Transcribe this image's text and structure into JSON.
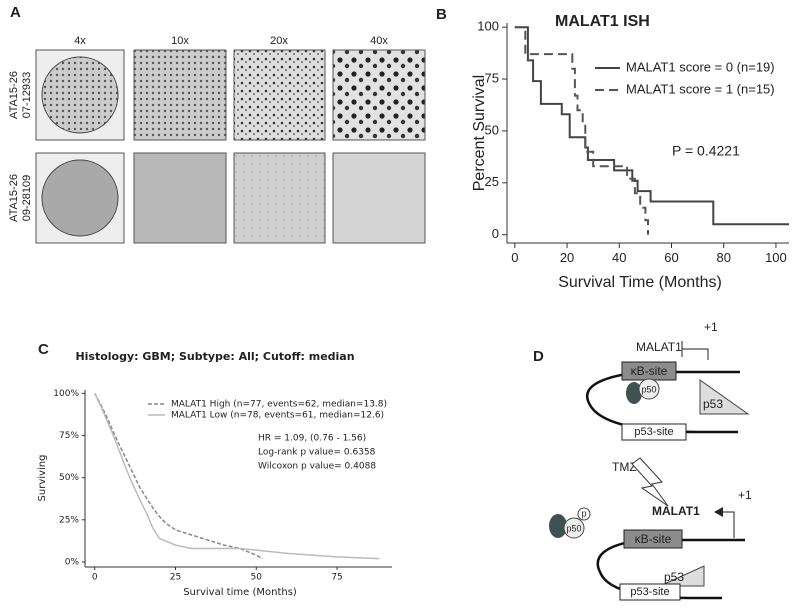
{
  "panel_labels": [
    "A",
    "B",
    "C",
    "D"
  ],
  "panel_a": {
    "columns": [
      "4x",
      "10x",
      "20x",
      "40x"
    ],
    "rows": [
      [
        "ATA15-26",
        "07-12933"
      ],
      [
        "ATA15-26",
        "09-28109"
      ]
    ]
  },
  "chart_data": [
    {
      "type": "line",
      "title": "MALAT1 ISH",
      "x_label": "Survival Time (Months)",
      "y_label": "Percent Survival",
      "xlim": [
        -3,
        105
      ],
      "ylim": [
        -4,
        102
      ],
      "xticks": [
        0,
        20,
        40,
        60,
        80,
        100
      ],
      "yticks": [
        0,
        25,
        50,
        75,
        100
      ],
      "annotations": [
        "P = 0.4221"
      ],
      "series": [
        {
          "name": "MALAT1 score = 0 (n=19)",
          "color": "#444444",
          "line_style": "solid",
          "x": [
            0,
            5,
            5,
            7,
            7,
            10,
            10,
            18,
            18,
            21,
            21,
            27,
            27,
            28,
            28,
            38,
            38,
            45,
            45,
            47,
            47,
            52,
            52,
            76,
            76,
            105
          ],
          "values": [
            100,
            100,
            84,
            84,
            74,
            74,
            63,
            63,
            58,
            58,
            47,
            47,
            42,
            42,
            36,
            36,
            31,
            31,
            26,
            26,
            21,
            21,
            16,
            16,
            5,
            5
          ]
        },
        {
          "name": "MALAT1 score = 1 (n=15)",
          "color": "#555555",
          "line_style": "dashed",
          "x": [
            0,
            4,
            4,
            22,
            22,
            23,
            23,
            24,
            24,
            26,
            26,
            27,
            27,
            30,
            30,
            43,
            43,
            46,
            46,
            48,
            48,
            50,
            50,
            51,
            51
          ],
          "values": [
            100,
            100,
            87,
            87,
            80,
            80,
            67,
            67,
            60,
            60,
            53,
            53,
            40,
            40,
            33,
            33,
            27,
            27,
            20,
            20,
            13,
            13,
            7,
            7,
            0
          ]
        }
      ]
    },
    {
      "type": "line",
      "title": "Histology: GBM; Subtype: All; Cutoff: median",
      "x_label": "Survival time (Months)",
      "y_label": "Surviving",
      "xlim": [
        -3,
        92
      ],
      "ylim": [
        -3,
        102
      ],
      "xticks": [
        0,
        25,
        50,
        75
      ],
      "yticks": [
        {
          "value": 0,
          "label": "0%"
        },
        {
          "value": 25,
          "label": "25%"
        },
        {
          "value": 50,
          "label": "50%"
        },
        {
          "value": 75,
          "label": "75%"
        },
        {
          "value": 100,
          "label": "100%"
        }
      ],
      "annotations": [
        "HR = 1.09, (0.76 - 1.56)",
        "Log-rank p value= 0.6358",
        "Wilcoxon p value= 0.4088"
      ],
      "series": [
        {
          "name": "MALAT1 High (n=77, events=62, median=13.8)",
          "color": "#888888",
          "line_style": "dashed",
          "x": [
            0,
            2,
            4,
            6,
            8,
            10,
            12,
            14,
            16,
            18,
            20,
            22,
            25,
            30,
            35,
            40,
            45,
            50,
            52
          ],
          "values": [
            100,
            93,
            85,
            76,
            68,
            60,
            52,
            44,
            38,
            32,
            27,
            23,
            19,
            16,
            13,
            10,
            8,
            4,
            2
          ]
        },
        {
          "name": "MALAT1 Low (n=78, events=61, median=12.6)",
          "color": "#bbbbbb",
          "line_style": "solid",
          "x": [
            0,
            2,
            4,
            6,
            8,
            10,
            12,
            14,
            16,
            18,
            20,
            25,
            30,
            45,
            60,
            75,
            88
          ],
          "values": [
            100,
            92,
            83,
            74,
            64,
            54,
            45,
            37,
            29,
            20,
            14,
            10,
            8,
            8,
            5,
            3,
            2
          ]
        }
      ]
    }
  ],
  "diagram": {
    "top": {
      "gene": "MALAT1",
      "tss": "+1",
      "kb_site": "κB-site",
      "p50": "p50",
      "p53": "p53",
      "p53_site": "p53-site"
    },
    "stimulus": "TMZ",
    "bottom": {
      "gene": "MALAT1",
      "tss": "+1",
      "phospho": "p",
      "p50": "p50",
      "kb_site": "κB-site",
      "p53": "p53",
      "p53_site": "p53-site"
    }
  }
}
